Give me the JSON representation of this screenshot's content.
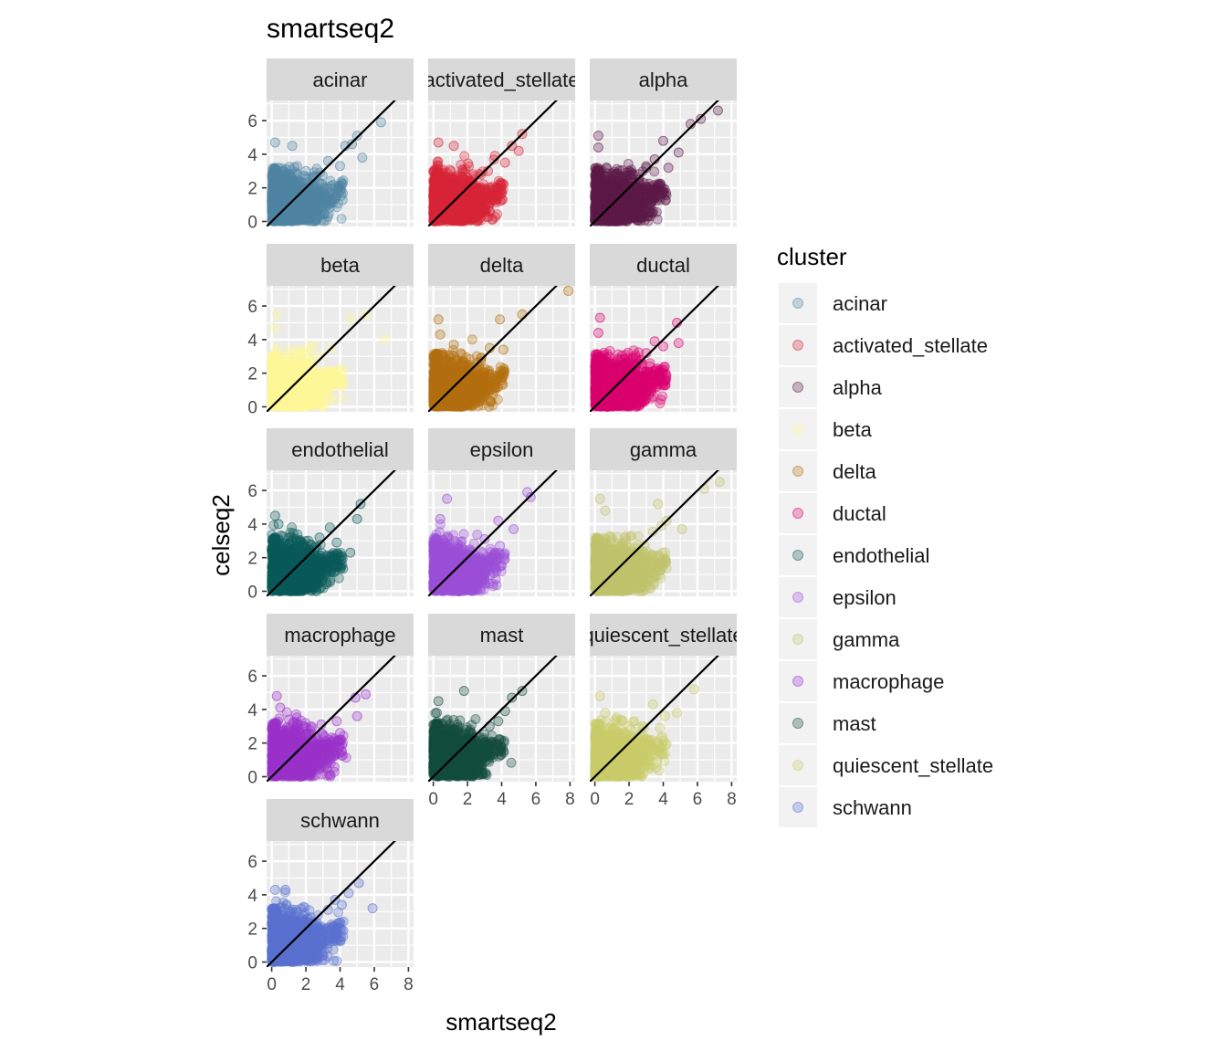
{
  "chart_data": {
    "type": "scatter",
    "title": "smartseq2",
    "xlabel": "smartseq2",
    "ylabel": "celseq2",
    "xlim": [
      -0.3,
      8.3
    ],
    "ylim": [
      -0.3,
      7.2
    ],
    "x_ticks": [
      0,
      2,
      4,
      6,
      8
    ],
    "y_ticks": [
      0,
      2,
      4,
      6
    ],
    "reference_line": {
      "slope": 1,
      "intercept": 0
    },
    "grid": true,
    "legend": {
      "title": "cluster",
      "placement": "right"
    },
    "panels": [
      {
        "name": "acinar",
        "label": "acinar",
        "color": "#4f86a3",
        "notable_points": [
          [
            6.4,
            5.9
          ],
          [
            5.0,
            5.1
          ],
          [
            4.7,
            4.6
          ],
          [
            5.3,
            3.8
          ],
          [
            4.3,
            4.5
          ],
          [
            0.2,
            4.7
          ],
          [
            1.2,
            4.5
          ],
          [
            4.0,
            3.3
          ],
          [
            3.3,
            3.6
          ],
          [
            2.0,
            3.0
          ]
        ]
      },
      {
        "name": "activated_stellate",
        "label": "activated_stellate",
        "color": "#d72638",
        "notable_points": [
          [
            5.2,
            5.2
          ],
          [
            5.0,
            4.2
          ],
          [
            4.6,
            4.5
          ],
          [
            0.3,
            4.7
          ],
          [
            1.2,
            4.5
          ],
          [
            3.6,
            3.9
          ],
          [
            4.2,
            3.5
          ],
          [
            3.2,
            3.0
          ]
        ]
      },
      {
        "name": "alpha",
        "label": "alpha",
        "color": "#5d1a4a",
        "notable_points": [
          [
            7.2,
            6.6
          ],
          [
            6.2,
            6.1
          ],
          [
            5.6,
            5.8
          ],
          [
            4.0,
            4.8
          ],
          [
            4.9,
            4.1
          ],
          [
            0.2,
            5.1
          ],
          [
            0.2,
            4.4
          ],
          [
            3.5,
            3.7
          ],
          [
            4.3,
            3.2
          ],
          [
            3.0,
            3.2
          ]
        ]
      },
      {
        "name": "beta",
        "label": "beta",
        "color": "#fff799",
        "notable_points": [
          [
            6.6,
            4.0
          ],
          [
            5.5,
            5.5
          ],
          [
            4.6,
            5.3
          ],
          [
            0.3,
            5.5
          ],
          [
            0.2,
            4.7
          ],
          [
            3.5,
            3.5
          ],
          [
            2.8,
            3.0
          ]
        ]
      },
      {
        "name": "delta",
        "label": "delta",
        "color": "#b46f0f",
        "notable_points": [
          [
            7.9,
            6.9
          ],
          [
            5.2,
            5.5
          ],
          [
            3.9,
            5.2
          ],
          [
            0.3,
            5.2
          ],
          [
            0.4,
            4.3
          ],
          [
            1.2,
            3.7
          ],
          [
            4.1,
            3.4
          ],
          [
            3.3,
            3.5
          ]
        ]
      },
      {
        "name": "ductal",
        "label": "ductal",
        "color": "#d9006f",
        "notable_points": [
          [
            4.8,
            5.0
          ],
          [
            4.9,
            3.8
          ],
          [
            0.3,
            5.3
          ],
          [
            0.2,
            4.4
          ],
          [
            3.5,
            3.9
          ],
          [
            4.0,
            3.6
          ],
          [
            3.0,
            3.2
          ]
        ]
      },
      {
        "name": "endothelial",
        "label": "endothelial",
        "color": "#0a5a5a",
        "notable_points": [
          [
            5.2,
            5.2
          ],
          [
            5.0,
            4.3
          ],
          [
            4.6,
            2.3
          ],
          [
            0.2,
            4.5
          ],
          [
            0.4,
            4.0
          ],
          [
            3.4,
            3.8
          ],
          [
            3.8,
            2.9
          ],
          [
            2.8,
            3.2
          ]
        ]
      },
      {
        "name": "epsilon",
        "label": "epsilon",
        "color": "#9b4fd6",
        "notable_points": [
          [
            5.5,
            5.9
          ],
          [
            5.7,
            5.6
          ],
          [
            0.8,
            5.5
          ],
          [
            0.4,
            4.3
          ],
          [
            4.7,
            3.7
          ],
          [
            3.8,
            4.2
          ],
          [
            3.9,
            2.7
          ],
          [
            3.0,
            3.1
          ]
        ]
      },
      {
        "name": "gamma",
        "label": "gamma",
        "color": "#c1c36d",
        "notable_points": [
          [
            7.3,
            6.5
          ],
          [
            6.4,
            6.1
          ],
          [
            3.7,
            5.2
          ],
          [
            0.3,
            5.5
          ],
          [
            0.6,
            4.8
          ],
          [
            5.1,
            3.7
          ],
          [
            3.9,
            3.9
          ],
          [
            4.2,
            4.2
          ]
        ]
      },
      {
        "name": "macrophage",
        "label": "macrophage",
        "color": "#9a33c9",
        "notable_points": [
          [
            5.5,
            4.9
          ],
          [
            4.9,
            4.7
          ],
          [
            5.0,
            3.6
          ],
          [
            0.3,
            4.8
          ],
          [
            0.5,
            4.1
          ],
          [
            3.8,
            3.3
          ],
          [
            4.0,
            2.6
          ],
          [
            2.9,
            3.1
          ]
        ]
      },
      {
        "name": "mast",
        "label": "mast",
        "color": "#154d3d",
        "notable_points": [
          [
            5.2,
            5.1
          ],
          [
            4.6,
            4.7
          ],
          [
            1.8,
            5.1
          ],
          [
            0.3,
            4.5
          ],
          [
            0.2,
            3.8
          ],
          [
            4.2,
            3.9
          ],
          [
            3.8,
            3.3
          ],
          [
            3.6,
            1.9
          ],
          [
            3.3,
            3.0
          ]
        ]
      },
      {
        "name": "quiescent_stellate",
        "label": "quiescent_stellate",
        "color": "#c9cd6a",
        "notable_points": [
          [
            5.8,
            5.2
          ],
          [
            3.4,
            4.3
          ],
          [
            4.8,
            3.8
          ],
          [
            4.1,
            3.6
          ],
          [
            0.3,
            4.8
          ],
          [
            0.6,
            3.8
          ],
          [
            3.8,
            2.9
          ],
          [
            2.8,
            3.0
          ]
        ]
      },
      {
        "name": "schwann",
        "label": "schwann",
        "color": "#5a71cf",
        "notable_points": [
          [
            5.9,
            3.2
          ],
          [
            5.1,
            4.7
          ],
          [
            4.5,
            4.1
          ],
          [
            4.1,
            3.4
          ],
          [
            0.2,
            4.3
          ],
          [
            0.8,
            4.3
          ],
          [
            3.7,
            3.7
          ],
          [
            3.5,
            2.0
          ],
          [
            3.3,
            3.1
          ]
        ]
      }
    ]
  }
}
